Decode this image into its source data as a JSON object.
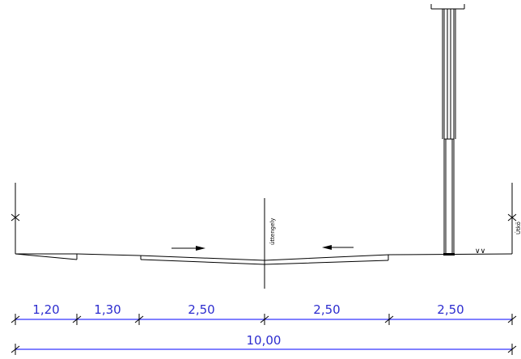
{
  "drawing": {
    "axis_label": "úttengely",
    "right_edge_label": "Útkö",
    "grass_symbol": "∨∨",
    "dimension_segments": [
      {
        "value": "1,20"
      },
      {
        "value": "1,30"
      },
      {
        "value": "2,50"
      },
      {
        "value": "2,50"
      },
      {
        "value": "2,50"
      }
    ],
    "total_dimension": "10,00"
  },
  "colors": {
    "ink": "#000000",
    "dimension_line": "#0000ff",
    "dimension_text": "#2d2dcf",
    "background": "#ffffff"
  }
}
